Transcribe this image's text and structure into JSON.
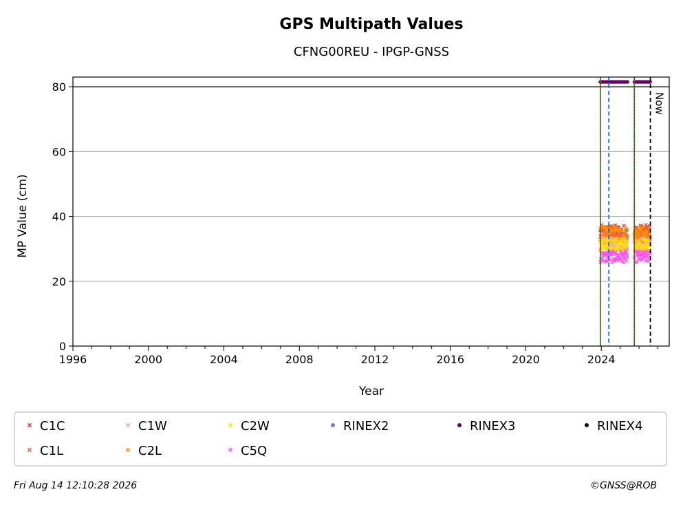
{
  "chart_data": {
    "type": "scatter",
    "title": "GPS Multipath Values",
    "subtitle": "CFNG00REU - IPGP-GNSS",
    "xlabel": "Year",
    "ylabel": "MP Value (cm)",
    "xlim": [
      1996,
      2027.6
    ],
    "ylim": [
      0,
      83
    ],
    "x_ticks": [
      1996,
      2000,
      2004,
      2008,
      2012,
      2016,
      2020,
      2024
    ],
    "y_ticks": [
      0,
      20,
      40,
      60,
      80
    ],
    "grid": "horizontal",
    "legend_placement": "below",
    "reference_line_y": 80,
    "segments": [
      [
        2023.95,
        2025.4
      ],
      [
        2025.75,
        2026.6
      ]
    ],
    "series": [
      {
        "name": "C1C",
        "marker": "x",
        "color": "#e8382e",
        "mean": 35.0,
        "spread": 2.4
      },
      {
        "name": "C1L",
        "marker": "x",
        "color": "#f25a4e",
        "mean": 34.0,
        "spread": 2.2
      },
      {
        "name": "C1W",
        "marker": "x",
        "color": "#ff9aa2",
        "mean": 31.5,
        "spread": 2.0
      },
      {
        "name": "C2L",
        "marker": "x",
        "color": "#ff8c00",
        "mean": 34.5,
        "spread": 2.4
      },
      {
        "name": "C2W",
        "marker": "x",
        "color": "#ffe000",
        "mean": 31.0,
        "spread": 2.2
      },
      {
        "name": "C5Q",
        "marker": "x",
        "color": "#ff55ee",
        "mean": 27.5,
        "spread": 1.8
      },
      {
        "name": "RINEX2",
        "marker": "dot",
        "color": "#7b7bc0"
      },
      {
        "name": "RINEX3",
        "marker": "dot",
        "color": "#660066",
        "y": 81.5
      },
      {
        "name": "RINEX4",
        "marker": "dot",
        "color": "#1a0020"
      }
    ],
    "vertical_lines": [
      {
        "x": 2023.95,
        "style": "solid",
        "color": "#008000"
      },
      {
        "x": 2023.95,
        "style": "dotted",
        "color": "#e8382e"
      },
      {
        "x": 2024.4,
        "style": "dashed",
        "color": "#1f6fc0"
      },
      {
        "x": 2025.75,
        "style": "solid",
        "color": "#008000"
      },
      {
        "x": 2025.75,
        "style": "dotted",
        "color": "#e8382e"
      },
      {
        "x": 2026.6,
        "style": "dashed",
        "color": "#000000",
        "label": "Now"
      }
    ]
  },
  "footer": {
    "timestamp": "Fri Aug 14 12:10:28 2026",
    "copyright": "©GNSS@ROB"
  }
}
